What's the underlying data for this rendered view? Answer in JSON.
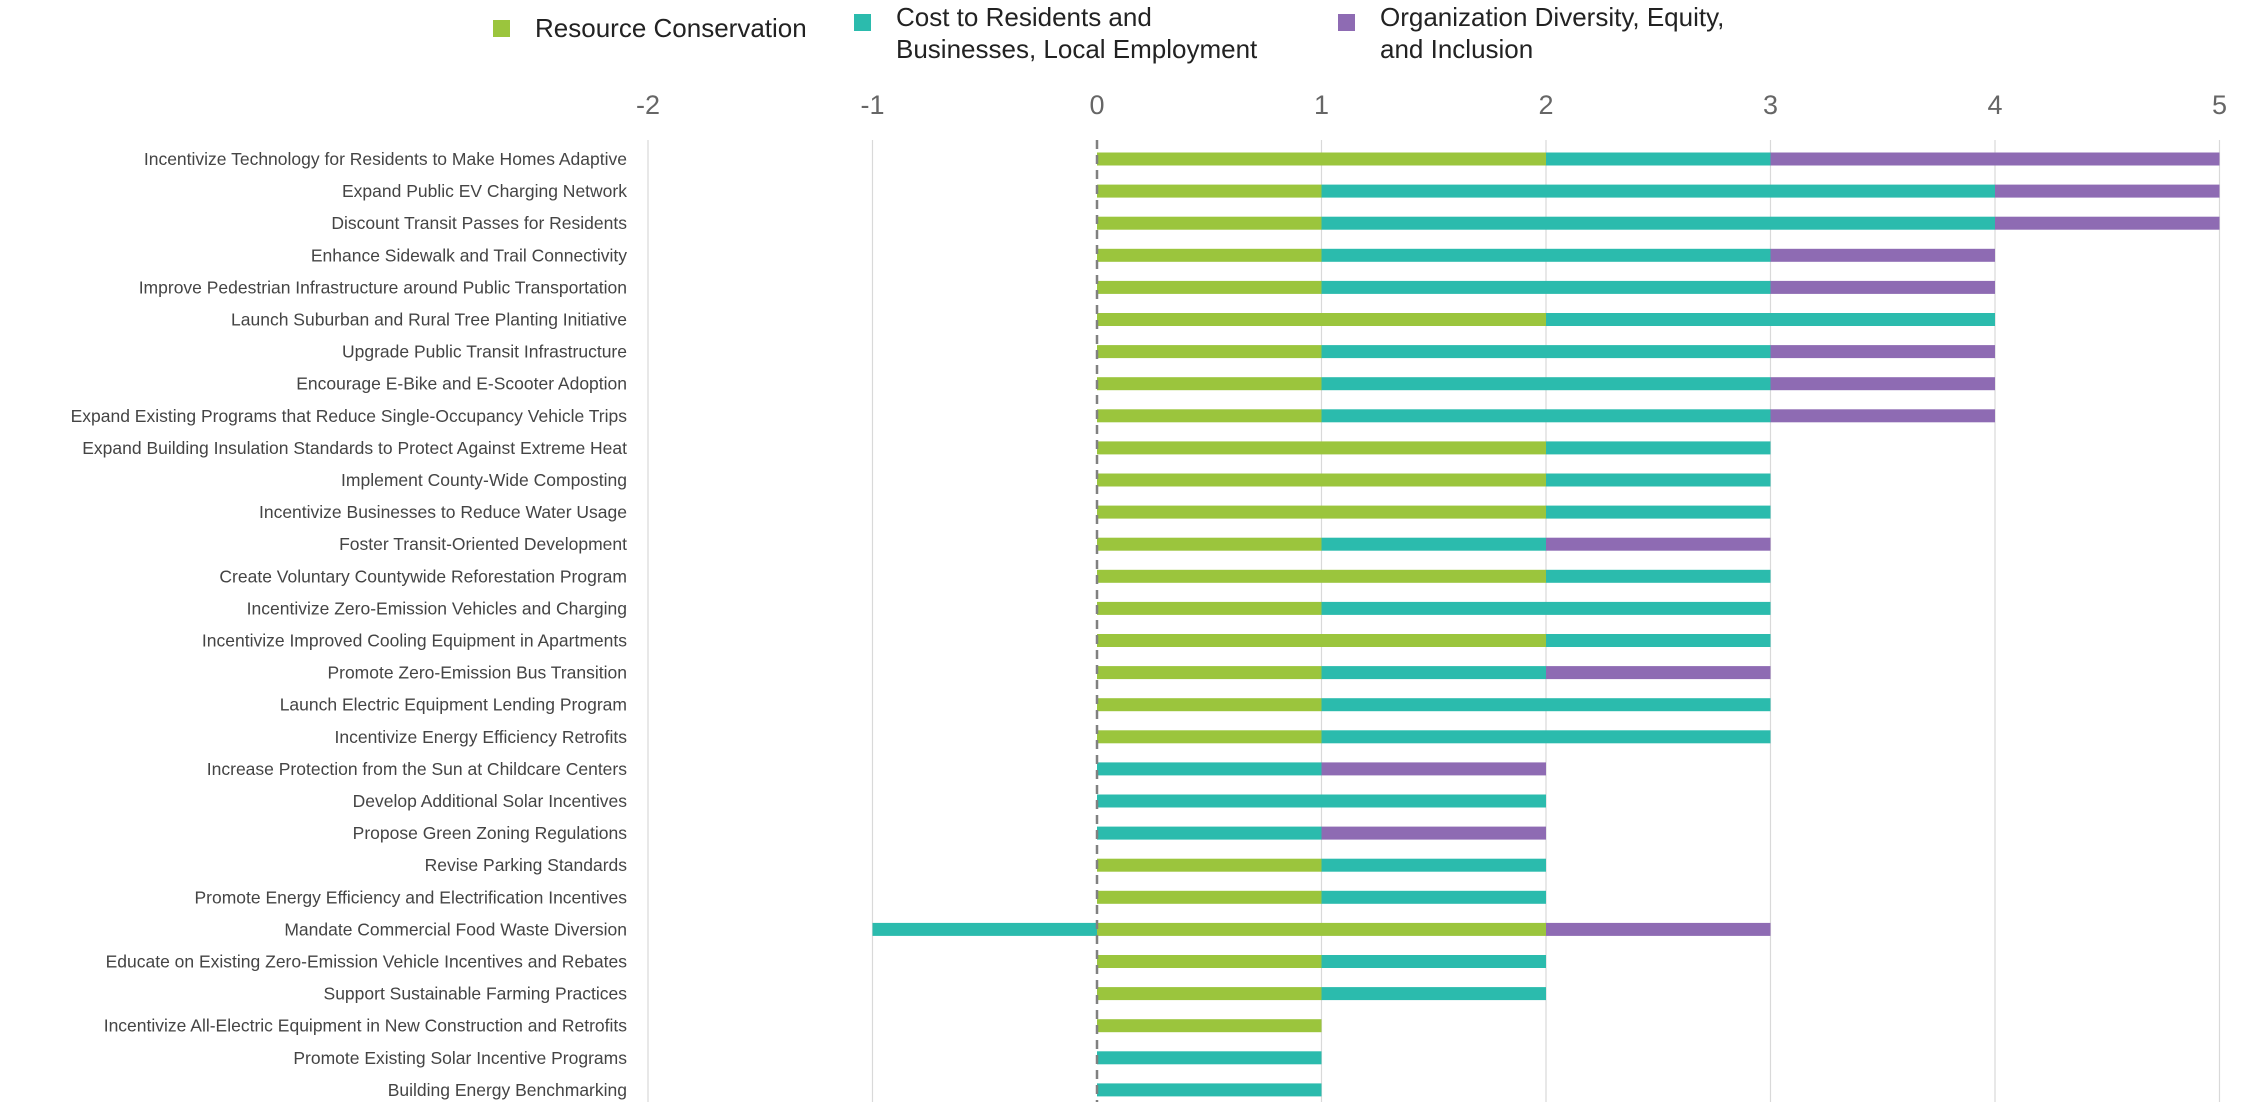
{
  "chart_data": {
    "type": "bar",
    "orientation": "horizontal",
    "stacked": true,
    "title": "",
    "xlabel": "",
    "ylabel": "",
    "xlim": [
      -2,
      5
    ],
    "x_ticks": [
      "-2",
      "-1",
      "0",
      "1",
      "2",
      "3",
      "4",
      "5"
    ],
    "grid": true,
    "legend_position": "top",
    "legend": [
      {
        "name": "Resource Conservation",
        "lines": [
          "Resource Conservation"
        ],
        "color": "#9BC53D"
      },
      {
        "name": "Cost to Residents and Businesses, Local Employment",
        "lines": [
          "Cost to Residents and",
          "Businesses, Local Employment"
        ],
        "color": "#2BBBAD"
      },
      {
        "name": "Organization Diversity, Equity, and Inclusion",
        "lines": [
          "Organization Diversity, Equity,",
          "and Inclusion"
        ],
        "color": "#8E6BB3"
      }
    ],
    "categories": [
      "Incentivize Technology for Residents to Make Homes Adaptive",
      "Expand Public EV Charging Network",
      "Discount Transit Passes for Residents",
      "Enhance Sidewalk and Trail Connectivity",
      "Improve Pedestrian Infrastructure around Public Transportation",
      "Launch Suburban and Rural Tree Planting Initiative",
      "Upgrade Public Transit Infrastructure",
      "Encourage E-Bike and E-Scooter Adoption",
      "Expand Existing Programs that Reduce Single-Occupancy Vehicle Trips",
      "Expand Building Insulation Standards to Protect Against Extreme Heat",
      "Implement County-Wide Composting",
      "Incentivize Businesses to Reduce Water Usage",
      "Foster Transit-Oriented Development",
      "Create Voluntary Countywide Reforestation Program",
      "Incentivize Zero-Emission Vehicles and Charging",
      "Incentivize Improved Cooling Equipment in Apartments",
      "Promote Zero-Emission Bus Transition",
      "Launch Electric Equipment Lending Program",
      "Incentivize Energy Efficiency Retrofits",
      "Increase Protection from the Sun at Childcare Centers",
      "Develop Additional Solar Incentives",
      "Propose Green Zoning Regulations",
      "Revise Parking Standards",
      "Promote Energy Efficiency and Electrification Incentives",
      "Mandate Commercial Food Waste Diversion",
      "Educate on Existing Zero-Emission Vehicle Incentives and Rebates",
      "Support Sustainable Farming Practices",
      "Incentivize All-Electric Equipment in New Construction and Retrofits",
      "Promote Existing Solar Incentive Programs",
      "Building Energy Benchmarking"
    ],
    "series": [
      {
        "name": "Resource Conservation",
        "color": "#9BC53D",
        "values": [
          2,
          1,
          1,
          1,
          1,
          2,
          1,
          1,
          1,
          2,
          2,
          2,
          1,
          2,
          1,
          2,
          1,
          1,
          1,
          0,
          0,
          0,
          1,
          1,
          2,
          1,
          1,
          1,
          0,
          0
        ]
      },
      {
        "name": "Cost to Residents and Businesses, Local Employment",
        "color": "#2BBBAD",
        "values": [
          1,
          3,
          3,
          2,
          2,
          2,
          2,
          2,
          2,
          1,
          1,
          1,
          1,
          1,
          2,
          1,
          1,
          2,
          2,
          1,
          2,
          1,
          1,
          1,
          -1,
          1,
          1,
          0,
          1,
          1
        ]
      },
      {
        "name": "Organization Diversity, Equity, and Inclusion",
        "color": "#8E6BB3",
        "values": [
          2,
          1,
          1,
          1,
          1,
          0,
          1,
          1,
          1,
          0,
          0,
          0,
          1,
          0,
          0,
          0,
          1,
          0,
          0,
          1,
          0,
          1,
          0,
          0,
          1,
          0,
          0,
          0,
          0,
          0
        ]
      }
    ]
  }
}
